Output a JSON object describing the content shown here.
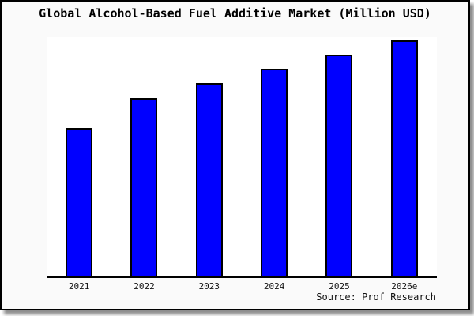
{
  "chart": {
    "title": "Global Alcohol-Based Fuel Additive Market (Million USD)",
    "source": "Source: Prof Research"
  },
  "chart_data": {
    "type": "bar",
    "title": "Global Alcohol-Based Fuel Additive Market (Million USD)",
    "categories": [
      "2021",
      "2022",
      "2023",
      "2024",
      "2025",
      "2026e"
    ],
    "values": [
      188,
      226,
      245,
      263,
      281,
      299
    ],
    "value_axis": "unlabeled - values are relative heights estimated from pixels",
    "xlabel": "",
    "ylabel": "",
    "ylim": [
      0,
      303
    ],
    "grid": false,
    "legend": false,
    "source": "Source: Prof Research",
    "bar_color": "#0000ff",
    "bar_border_color": "#000000"
  },
  "colors": {
    "canvas_background": "#fafafa",
    "plot_background": "#ffffff",
    "bar_fill": "#0000ff",
    "bar_border": "#000000",
    "frame_border": "#000000",
    "axis_line": "#000000",
    "text": "#000000"
  }
}
